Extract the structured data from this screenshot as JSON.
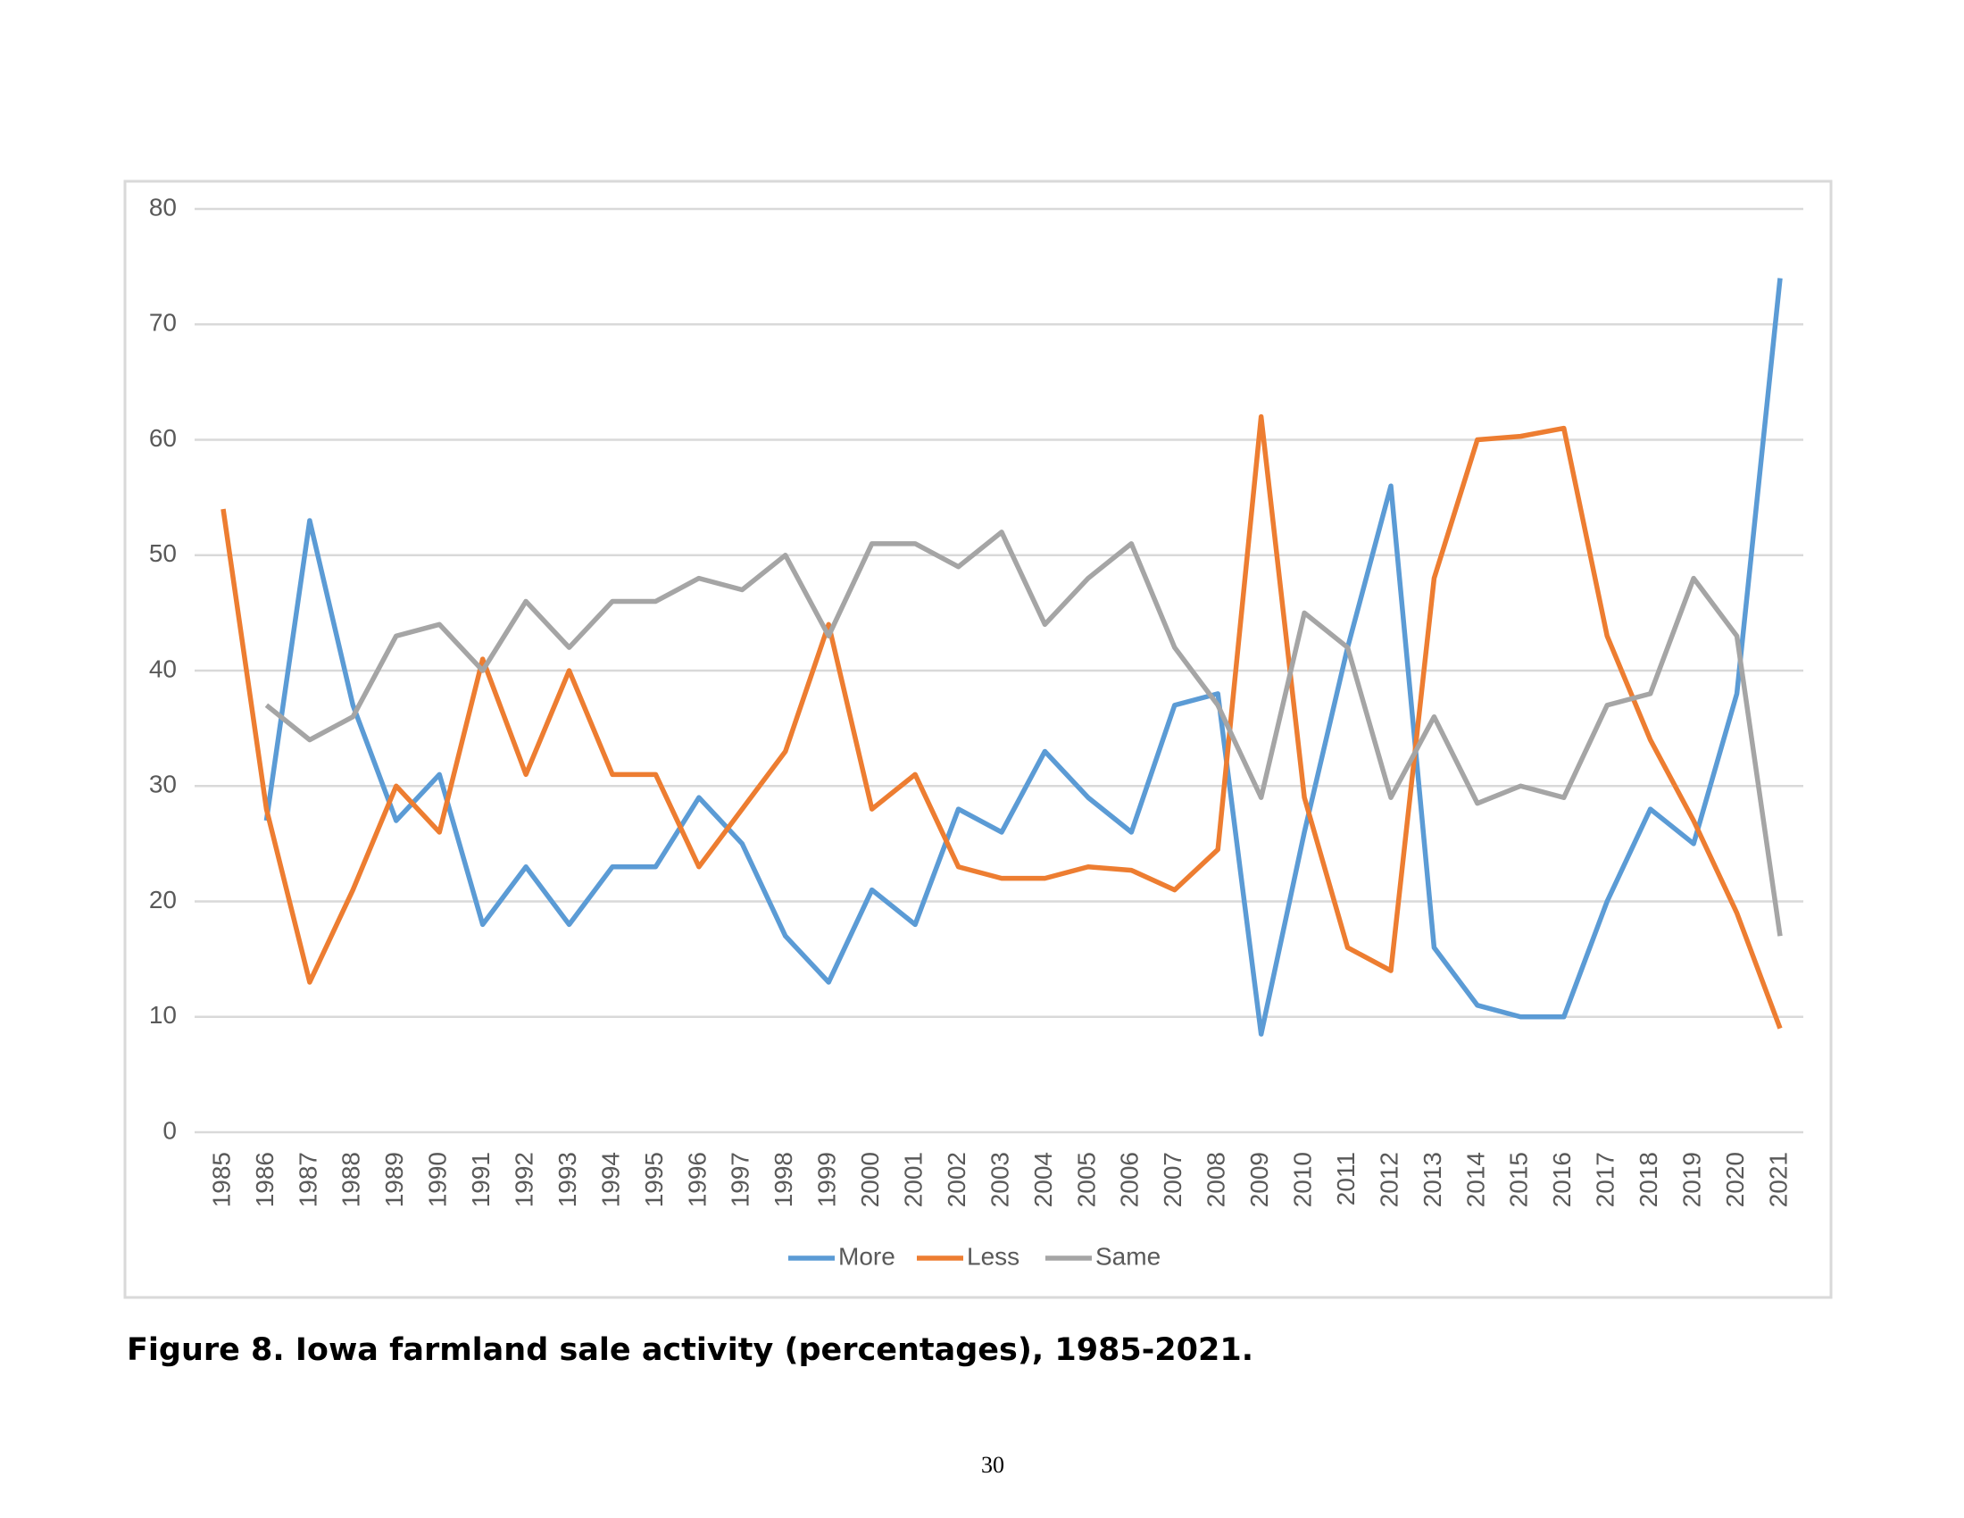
{
  "chart_data": {
    "type": "line",
    "categories": [
      "1985",
      "1986",
      "1987",
      "1988",
      "1989",
      "1990",
      "1991",
      "1992",
      "1993",
      "1994",
      "1995",
      "1996",
      "1997",
      "1998",
      "1999",
      "2000",
      "2001",
      "2002",
      "2003",
      "2004",
      "2005",
      "2006",
      "2007",
      "2008",
      "2009",
      "2010",
      "2011",
      "2012",
      "2013",
      "2014",
      "2015",
      "2016",
      "2017",
      "2018",
      "2019",
      "2020",
      "2021"
    ],
    "series": [
      {
        "name": "More",
        "color": "#5b9bd5",
        "values": [
          null,
          27,
          53,
          37,
          27,
          31,
          18,
          23,
          18,
          23,
          23,
          29,
          25,
          17,
          13,
          21,
          18,
          28,
          26,
          33,
          29,
          26,
          37,
          38,
          8.5,
          26,
          42,
          56,
          16,
          11,
          10,
          10,
          20,
          28,
          25,
          38,
          74
        ]
      },
      {
        "name": "Less",
        "color": "#ed7d31",
        "values": [
          54,
          28,
          13,
          21,
          30,
          26,
          41,
          31,
          40,
          31,
          31,
          23,
          28,
          33,
          44,
          28,
          31,
          23,
          22,
          22,
          23,
          22.7,
          21,
          24.5,
          62,
          29,
          16,
          14,
          48,
          60,
          60.3,
          61,
          43,
          34,
          27,
          19,
          9
        ]
      },
      {
        "name": "Same",
        "color": "#a5a5a5",
        "values": [
          null,
          37,
          34,
          36,
          43,
          44,
          40,
          46,
          42,
          46,
          46,
          48,
          47,
          50,
          43,
          51,
          51,
          49,
          52,
          44,
          48,
          51,
          42,
          37,
          29,
          45,
          42,
          29,
          36,
          28.5,
          30,
          29,
          37,
          38,
          48,
          43,
          17
        ]
      }
    ],
    "ylim": [
      0,
      80
    ],
    "yticks": [
      0,
      10,
      20,
      30,
      40,
      50,
      60,
      70,
      80
    ],
    "grid": true,
    "legend": "bottom"
  },
  "caption": "Figure 8. Iowa farmland sale activity (percentages), 1985-2021.",
  "page_number": "30"
}
